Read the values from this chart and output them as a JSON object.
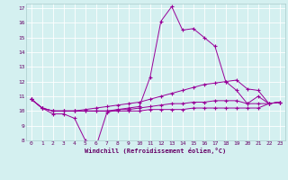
{
  "xlabel": "Windchill (Refroidissement éolien,°C)",
  "bg_color": "#d4f0f0",
  "line_color": "#990099",
  "grid_color": "#c0e0e0",
  "xlim": [
    -0.5,
    23.5
  ],
  "ylim": [
    8,
    17.3
  ],
  "xticks": [
    0,
    1,
    2,
    3,
    4,
    5,
    6,
    7,
    8,
    9,
    10,
    11,
    12,
    13,
    14,
    15,
    16,
    17,
    18,
    19,
    20,
    21,
    22,
    23
  ],
  "yticks": [
    8,
    9,
    10,
    11,
    12,
    13,
    14,
    15,
    16,
    17
  ],
  "line1": [
    10.8,
    10.2,
    9.8,
    9.8,
    9.5,
    8.0,
    7.6,
    9.9,
    10.1,
    10.2,
    10.3,
    12.3,
    16.1,
    17.1,
    15.5,
    15.6,
    15.0,
    14.4,
    12.0,
    11.4,
    10.5,
    11.0,
    10.5,
    10.6
  ],
  "line2": [
    10.8,
    10.2,
    10.0,
    10.0,
    10.0,
    10.1,
    10.2,
    10.3,
    10.4,
    10.5,
    10.6,
    10.8,
    11.0,
    11.2,
    11.4,
    11.6,
    11.8,
    11.9,
    12.0,
    12.1,
    11.5,
    11.4,
    10.5,
    10.6
  ],
  "line3": [
    10.8,
    10.2,
    10.0,
    10.0,
    10.0,
    10.0,
    10.0,
    10.0,
    10.1,
    10.1,
    10.2,
    10.3,
    10.4,
    10.5,
    10.5,
    10.6,
    10.6,
    10.7,
    10.7,
    10.7,
    10.5,
    10.5,
    10.5,
    10.6
  ],
  "line4": [
    10.8,
    10.2,
    10.0,
    10.0,
    10.0,
    10.0,
    10.0,
    10.0,
    10.0,
    10.0,
    10.0,
    10.1,
    10.1,
    10.1,
    10.1,
    10.2,
    10.2,
    10.2,
    10.2,
    10.2,
    10.2,
    10.2,
    10.5,
    10.6
  ]
}
